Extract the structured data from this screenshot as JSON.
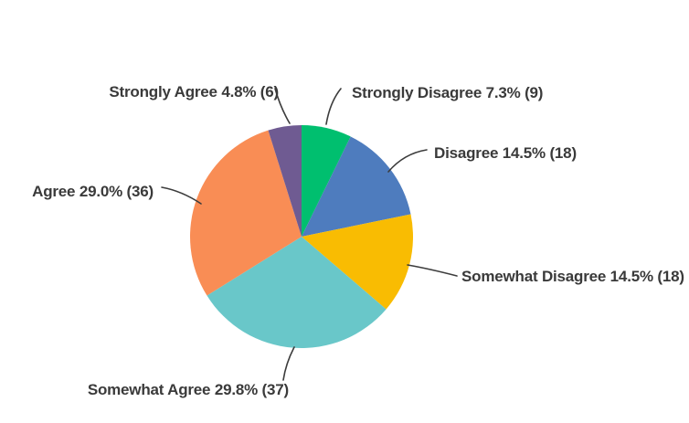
{
  "page": {
    "background": "#ffffff"
  },
  "chart_data": {
    "type": "pie",
    "title": "",
    "categories": [
      "Strongly Disagree",
      "Disagree",
      "Somewhat Disagree",
      "Somewhat Agree",
      "Agree",
      "Strongly Agree"
    ],
    "values": [
      9,
      18,
      18,
      37,
      36,
      6
    ],
    "percents": [
      7.3,
      14.5,
      14.5,
      29.8,
      29.0,
      4.8
    ],
    "slice_labels": [
      "Strongly Disagree 7.3% (9)",
      "Disagree 14.5% (18)",
      "Somewhat Disagree 14.5% (18)",
      "Somewhat Agree 29.8% (37)",
      "Agree 29.0% (36)",
      "Strongly Agree 4.8% (6)"
    ],
    "colors": [
      "#00bf6f",
      "#4e7cbe",
      "#f9bc02",
      "#69c7c9",
      "#f98d55",
      "#6f5b92"
    ],
    "start_angle_deg": 0,
    "direction": "clockwise",
    "legend_position": "none",
    "labels_style": "outside-with-leader-lines",
    "text_color": "#3a3a3a",
    "leader_line_color": "#3c3c3c"
  },
  "labels": {
    "strongly_agree": "Strongly Agree 4.8% (6)",
    "strongly_disagree": "Strongly Disagree 7.3% (9)",
    "disagree": "Disagree 14.5% (18)",
    "somewhat_disagree": "Somewhat Disagree 14.5% (18)",
    "somewhat_agree": "Somewhat Agree 29.8% (37)",
    "agree": "Agree 29.0% (36)"
  }
}
